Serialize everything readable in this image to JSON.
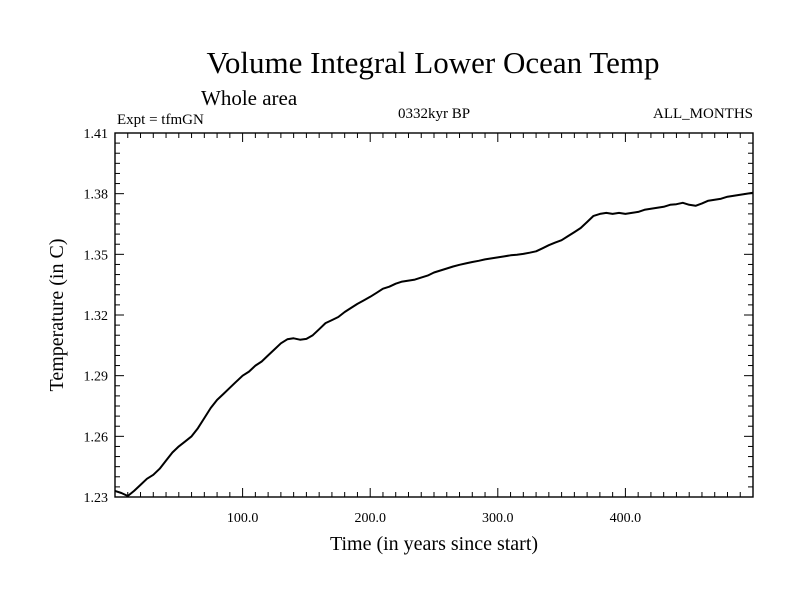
{
  "chart_data": {
    "type": "line",
    "title": "Volume Integral Lower Ocean Temp",
    "subtitle": "Whole area",
    "expt_label": "Expt = tfmGN",
    "period_label": "0332kyr BP",
    "months_label": "ALL_MONTHS",
    "xlabel": "Time (in years since start)",
    "ylabel": "Temperature (in C)",
    "xlim": [
      0,
      500
    ],
    "ylim": [
      1.23,
      1.41
    ],
    "xticks": [
      100,
      200,
      300,
      400
    ],
    "xtick_labels": [
      "100.0",
      "200.0",
      "300.0",
      "400.0"
    ],
    "yticks": [
      1.23,
      1.26,
      1.29,
      1.32,
      1.35,
      1.38,
      1.41
    ],
    "ytick_labels": [
      "1.23",
      "1.26",
      "1.29",
      "1.32",
      "1.35",
      "1.38",
      "1.41"
    ],
    "grid": false,
    "series": [
      {
        "x": [
          0,
          5,
          10,
          15,
          20,
          25,
          30,
          35,
          40,
          45,
          50,
          55,
          60,
          65,
          70,
          75,
          80,
          85,
          90,
          95,
          100,
          105,
          110,
          115,
          120,
          125,
          130,
          135,
          140,
          145,
          150,
          155,
          160,
          165,
          170,
          175,
          180,
          185,
          190,
          195,
          200,
          205,
          210,
          215,
          220,
          225,
          230,
          235,
          240,
          245,
          250,
          255,
          260,
          265,
          270,
          275,
          280,
          285,
          290,
          295,
          300,
          305,
          310,
          315,
          320,
          325,
          330,
          335,
          340,
          345,
          350,
          355,
          360,
          365,
          370,
          375,
          380,
          385,
          390,
          395,
          400,
          405,
          410,
          415,
          420,
          425,
          430,
          435,
          440,
          445,
          450,
          455,
          460,
          465,
          470,
          475,
          480,
          485,
          490,
          495,
          500
        ],
        "values": [
          1.233,
          1.232,
          1.2305,
          1.233,
          1.236,
          1.239,
          1.241,
          1.244,
          1.248,
          1.252,
          1.255,
          1.2575,
          1.26,
          1.264,
          1.269,
          1.274,
          1.278,
          1.281,
          1.284,
          1.287,
          1.29,
          1.292,
          1.295,
          1.297,
          1.3,
          1.303,
          1.306,
          1.308,
          1.3085,
          1.3078,
          1.3082,
          1.31,
          1.313,
          1.316,
          1.3175,
          1.319,
          1.3215,
          1.3235,
          1.3255,
          1.3272,
          1.329,
          1.331,
          1.333,
          1.334,
          1.3355,
          1.3365,
          1.337,
          1.3375,
          1.3385,
          1.3395,
          1.341,
          1.342,
          1.343,
          1.344,
          1.3448,
          1.3455,
          1.3462,
          1.3468,
          1.3475,
          1.348,
          1.3485,
          1.349,
          1.3495,
          1.3498,
          1.3502,
          1.3508,
          1.3515,
          1.353,
          1.3545,
          1.3558,
          1.357,
          1.359,
          1.361,
          1.363,
          1.366,
          1.369,
          1.37,
          1.3705,
          1.37,
          1.3705,
          1.37,
          1.3705,
          1.371,
          1.372,
          1.3725,
          1.373,
          1.3735,
          1.3745,
          1.3748,
          1.3755,
          1.3745,
          1.374,
          1.3752,
          1.3765,
          1.377,
          1.3775,
          1.3785,
          1.379,
          1.3795,
          1.38,
          1.3805
        ]
      }
    ]
  }
}
